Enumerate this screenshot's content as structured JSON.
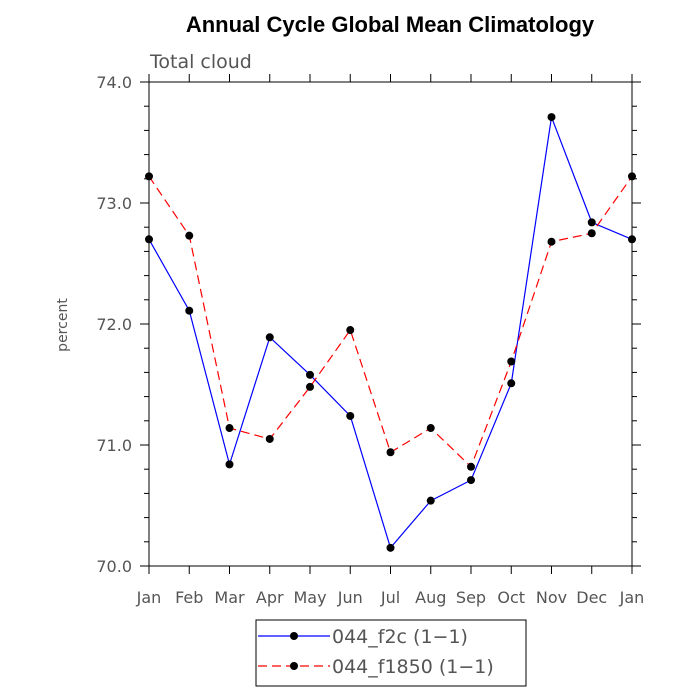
{
  "chart_data": {
    "type": "line",
    "title": "Annual Cycle Global Mean Climatology",
    "subtitle": "Total cloud",
    "xlabel": "",
    "ylabel": "percent",
    "categories": [
      "Jan",
      "Feb",
      "Mar",
      "Apr",
      "May",
      "Jun",
      "Jul",
      "Aug",
      "Sep",
      "Oct",
      "Nov",
      "Dec",
      "Jan"
    ],
    "y_ticks": [
      "70.0",
      "71.0",
      "72.0",
      "73.0",
      "74.0"
    ],
    "ylim": [
      70.0,
      74.0
    ],
    "grid": false,
    "legend_position": "bottom",
    "series": [
      {
        "name": "044_f2c (1−1)",
        "color": "#0000ff",
        "line_style": "solid",
        "marker": "filled-circle",
        "values": [
          72.7,
          72.11,
          70.84,
          71.89,
          71.58,
          71.24,
          70.15,
          70.54,
          70.71,
          71.51,
          73.71,
          72.84,
          72.7
        ]
      },
      {
        "name": "044_f1850 (1−1)",
        "color": "#ff0000",
        "line_style": "dashed",
        "marker": "filled-circle",
        "values": [
          73.22,
          72.73,
          71.14,
          71.05,
          71.48,
          71.95,
          70.94,
          71.14,
          70.82,
          71.69,
          72.68,
          72.75,
          73.22
        ]
      }
    ]
  }
}
